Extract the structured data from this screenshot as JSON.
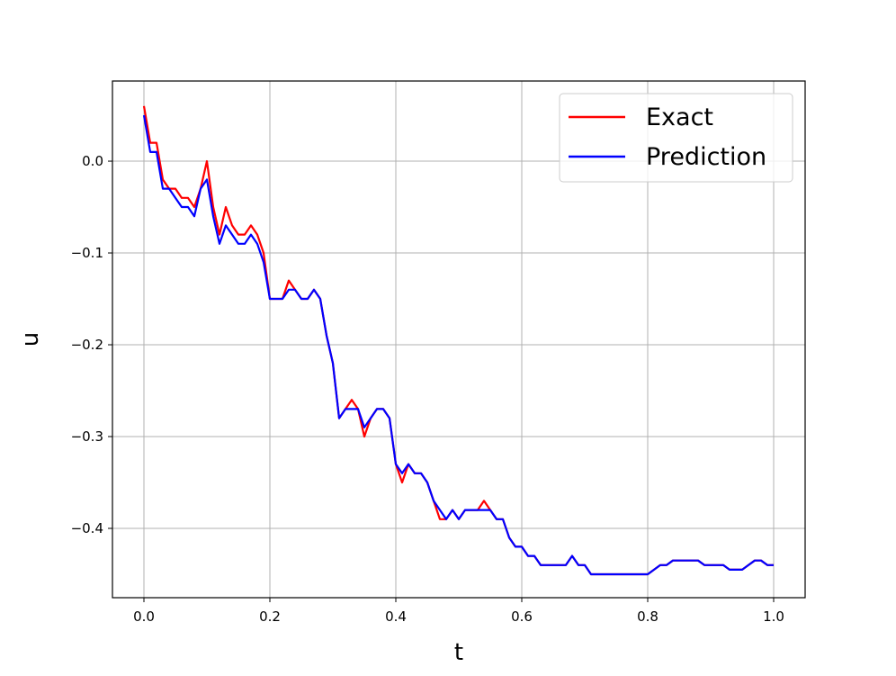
{
  "chart_data": {
    "type": "line",
    "xlabel": "t",
    "ylabel": "u",
    "x": [
      0.0,
      0.01,
      0.02,
      0.03,
      0.04,
      0.05,
      0.06,
      0.07,
      0.08,
      0.09,
      0.1,
      0.11,
      0.12,
      0.13,
      0.14,
      0.15,
      0.16,
      0.17,
      0.18,
      0.19,
      0.2,
      0.21,
      0.22,
      0.23,
      0.24,
      0.25,
      0.26,
      0.27,
      0.28,
      0.29,
      0.3,
      0.31,
      0.32,
      0.33,
      0.34,
      0.35,
      0.36,
      0.37,
      0.38,
      0.39,
      0.4,
      0.41,
      0.42,
      0.43,
      0.44,
      0.45,
      0.46,
      0.47,
      0.48,
      0.49,
      0.5,
      0.51,
      0.52,
      0.53,
      0.54,
      0.55,
      0.56,
      0.57,
      0.58,
      0.59,
      0.6,
      0.61,
      0.62,
      0.63,
      0.64,
      0.65,
      0.66,
      0.67,
      0.68,
      0.69,
      0.7,
      0.71,
      0.72,
      0.73,
      0.74,
      0.75,
      0.76,
      0.77,
      0.78,
      0.79,
      0.8,
      0.81,
      0.82,
      0.83,
      0.84,
      0.85,
      0.86,
      0.87,
      0.88,
      0.89,
      0.9,
      0.91,
      0.92,
      0.93,
      0.94,
      0.95,
      0.96,
      0.97,
      0.98,
      0.99,
      1.0
    ],
    "series": [
      {
        "name": "Exact",
        "color": "#ff0000",
        "values": [
          0.06,
          0.02,
          0.02,
          -0.02,
          -0.03,
          -0.03,
          -0.04,
          -0.04,
          -0.05,
          -0.03,
          0.0,
          -0.05,
          -0.08,
          -0.05,
          -0.07,
          -0.08,
          -0.08,
          -0.07,
          -0.08,
          -0.1,
          -0.15,
          -0.15,
          -0.15,
          -0.13,
          -0.14,
          -0.15,
          -0.15,
          -0.14,
          -0.15,
          -0.19,
          -0.22,
          -0.28,
          -0.27,
          -0.26,
          -0.27,
          -0.3,
          -0.28,
          -0.27,
          -0.27,
          -0.28,
          -0.33,
          -0.35,
          -0.33,
          -0.34,
          -0.34,
          -0.35,
          -0.37,
          -0.39,
          -0.39,
          -0.38,
          -0.39,
          -0.38,
          -0.38,
          -0.38,
          -0.37,
          -0.38,
          -0.39,
          -0.39,
          -0.41,
          -0.42,
          -0.42,
          -0.43,
          -0.43,
          -0.44,
          -0.44,
          -0.44,
          -0.44,
          -0.44,
          -0.43,
          -0.44,
          -0.44,
          -0.45,
          -0.45,
          -0.45,
          -0.45,
          -0.45,
          -0.45,
          -0.45,
          -0.45,
          -0.45,
          -0.45,
          -0.445,
          -0.44,
          -0.44,
          -0.435,
          -0.435,
          -0.435,
          -0.435,
          -0.435,
          -0.44,
          -0.44,
          -0.44,
          -0.44,
          -0.445,
          -0.445,
          -0.445,
          -0.44,
          -0.435,
          -0.435,
          -0.44,
          -0.44
        ]
      },
      {
        "name": "Prediction",
        "color": "#0000ff",
        "values": [
          0.05,
          0.01,
          0.01,
          -0.03,
          -0.03,
          -0.04,
          -0.05,
          -0.05,
          -0.06,
          -0.03,
          -0.02,
          -0.06,
          -0.09,
          -0.07,
          -0.08,
          -0.09,
          -0.09,
          -0.08,
          -0.09,
          -0.11,
          -0.15,
          -0.15,
          -0.15,
          -0.14,
          -0.14,
          -0.15,
          -0.15,
          -0.14,
          -0.15,
          -0.19,
          -0.22,
          -0.28,
          -0.27,
          -0.27,
          -0.27,
          -0.29,
          -0.28,
          -0.27,
          -0.27,
          -0.28,
          -0.33,
          -0.34,
          -0.33,
          -0.34,
          -0.34,
          -0.35,
          -0.37,
          -0.38,
          -0.39,
          -0.38,
          -0.39,
          -0.38,
          -0.38,
          -0.38,
          -0.38,
          -0.38,
          -0.39,
          -0.39,
          -0.41,
          -0.42,
          -0.42,
          -0.43,
          -0.43,
          -0.44,
          -0.44,
          -0.44,
          -0.44,
          -0.44,
          -0.43,
          -0.44,
          -0.44,
          -0.45,
          -0.45,
          -0.45,
          -0.45,
          -0.45,
          -0.45,
          -0.45,
          -0.45,
          -0.45,
          -0.45,
          -0.445,
          -0.44,
          -0.44,
          -0.435,
          -0.435,
          -0.435,
          -0.435,
          -0.435,
          -0.44,
          -0.44,
          -0.44,
          -0.44,
          -0.445,
          -0.445,
          -0.445,
          -0.44,
          -0.435,
          -0.435,
          -0.44,
          -0.44
        ]
      }
    ],
    "xlim": [
      -0.05,
      1.05
    ],
    "ylim": [
      -0.4755,
      0.0873
    ],
    "xticks": [
      {
        "value": 0,
        "label": "0.0"
      },
      0.2,
      0.4,
      0.6,
      0.8,
      {
        "value": 1,
        "label": "1.0"
      }
    ],
    "yticks": [
      {
        "value": -0.4,
        "label": "−0.4"
      },
      {
        "value": -0.3,
        "label": "−0.3"
      },
      {
        "value": -0.2,
        "label": "−0.2"
      },
      {
        "value": -0.1,
        "label": "−0.1"
      },
      {
        "value": 0,
        "label": "0.0"
      }
    ],
    "grid": true,
    "legend": "upper right"
  }
}
